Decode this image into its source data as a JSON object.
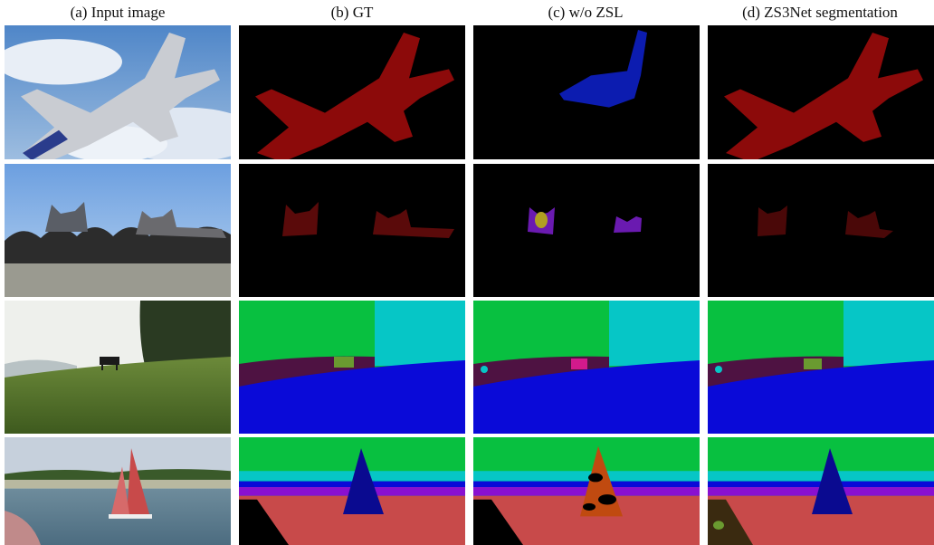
{
  "header": {
    "columns": [
      "(a) Input image",
      "(b) GT",
      "(c) w/o ZSL",
      "(d) ZS3Net segmentation"
    ]
  }
}
